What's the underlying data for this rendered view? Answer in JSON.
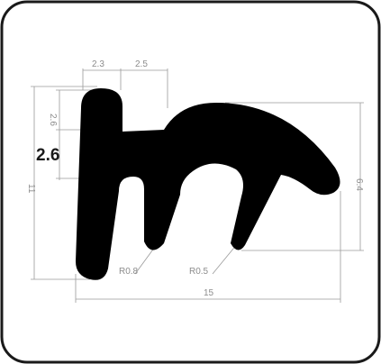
{
  "drawing": {
    "profile_color": "#000000",
    "dimension_color": "#8c8c8c",
    "frame_color": "#1a1a1a",
    "dimensions": {
      "top_left_width": "2.3",
      "top_right_width": "2.5",
      "upper_left_height": "2.6",
      "lip_thickness": "2.6",
      "overall_height": "11",
      "right_height": "6.4",
      "overall_width": "15",
      "left_radius": "R0.8",
      "right_radius": "R0.5"
    }
  }
}
